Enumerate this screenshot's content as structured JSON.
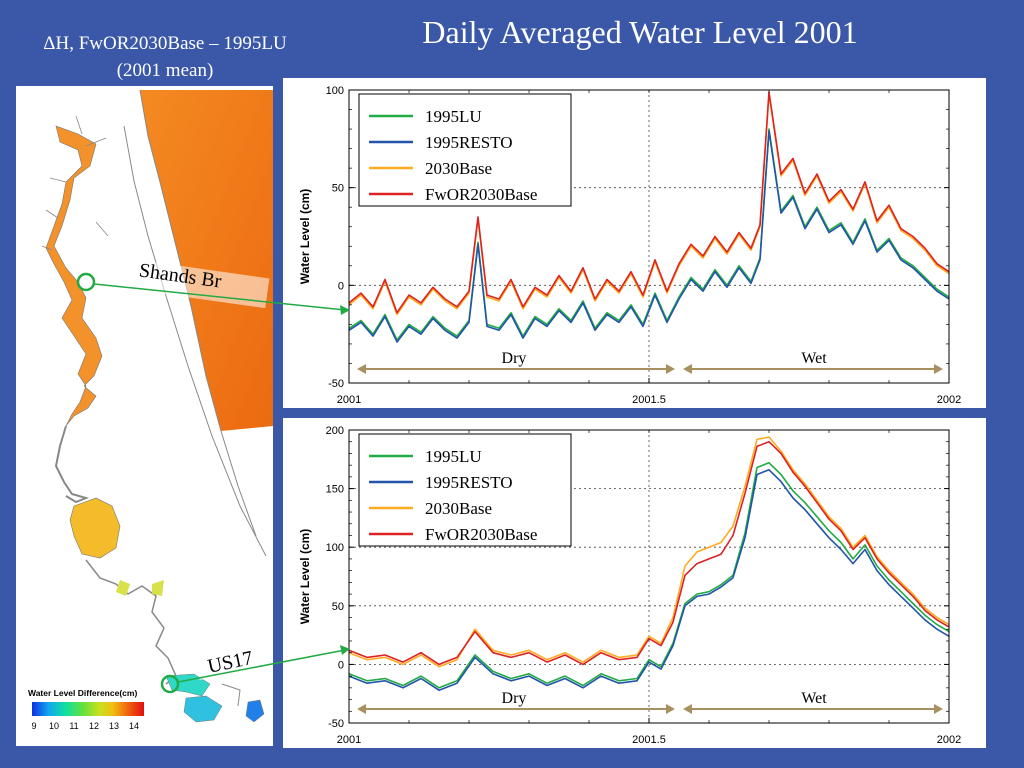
{
  "slide": {
    "title": "Daily Averaged Water Level 2001",
    "map_title_line1": "ΔH, FwOR2030Base – 1995LU",
    "map_title_line2": "(2001 mean)"
  },
  "map": {
    "labels": {
      "shands": "Shands Br",
      "us17": "US17"
    },
    "colorbar": {
      "title": "Water Level Difference(cm)",
      "ticks": [
        "9",
        "10",
        "11",
        "12",
        "13",
        "14"
      ],
      "colors": [
        "#1030e0",
        "#10a8f0",
        "#10e0a0",
        "#60e040",
        "#c8e020",
        "#f0c010",
        "#f06010",
        "#e01010"
      ]
    },
    "region_colors": {
      "ocean": "#f27a18",
      "river_upper": "#f3922a",
      "lake": "#f4bb2a",
      "mid": "#d8e04a",
      "lower": "#30d8c8",
      "lower_blue": "#2080e8"
    }
  },
  "colors": {
    "1995LU": "#22aa44",
    "1995RESTO": "#2255aa",
    "2030Base": "#ffaa22",
    "FwOR2030Base": "#dd2222",
    "season_arrow": "#a89060",
    "connector": "#22aa44"
  },
  "chart_data": [
    {
      "type": "line",
      "ylabel": "Water Level (cm)",
      "xlabel": "",
      "xlim": [
        2001,
        2002
      ],
      "ylim": [
        -50,
        100
      ],
      "xticks": [
        "2001",
        "2001.5",
        "2002"
      ],
      "yticks": [
        "100",
        "50",
        "0",
        "-50"
      ],
      "ytick_values": [
        100,
        50,
        0,
        -50
      ],
      "grid": "dotted",
      "legend_position": "top-left",
      "season_labels": [
        "Dry",
        "Wet"
      ],
      "season_split": 2001.55,
      "series": [
        {
          "name": "1995LU",
          "x": [
            2001.0,
            2001.02,
            2001.04,
            2001.06,
            2001.08,
            2001.1,
            2001.12,
            2001.14,
            2001.16,
            2001.18,
            2001.2,
            2001.215,
            2001.23,
            2001.25,
            2001.27,
            2001.29,
            2001.31,
            2001.33,
            2001.35,
            2001.37,
            2001.39,
            2001.41,
            2001.43,
            2001.45,
            2001.47,
            2001.49,
            2001.51,
            2001.53,
            2001.55,
            2001.57,
            2001.59,
            2001.61,
            2001.63,
            2001.65,
            2001.67,
            2001.685,
            2001.7,
            2001.72,
            2001.74,
            2001.76,
            2001.78,
            2001.8,
            2001.82,
            2001.84,
            2001.86,
            2001.88,
            2001.9,
            2001.92,
            2001.94,
            2001.96,
            2001.98,
            2002.0
          ],
          "values": [
            -22,
            -18,
            -25,
            -15,
            -28,
            -20,
            -24,
            -16,
            -22,
            -26,
            -18,
            22,
            -20,
            -22,
            -14,
            -26,
            -16,
            -20,
            -12,
            -18,
            -8,
            -22,
            -14,
            -18,
            -10,
            -20,
            -4,
            -18,
            -6,
            4,
            -2,
            8,
            0,
            10,
            2,
            14,
            80,
            38,
            46,
            30,
            40,
            28,
            32,
            22,
            34,
            18,
            24,
            14,
            10,
            4,
            -2,
            -6
          ]
        },
        {
          "name": "1995RESTO",
          "x": [
            2001.0,
            2001.02,
            2001.04,
            2001.06,
            2001.08,
            2001.1,
            2001.12,
            2001.14,
            2001.16,
            2001.18,
            2001.2,
            2001.215,
            2001.23,
            2001.25,
            2001.27,
            2001.29,
            2001.31,
            2001.33,
            2001.35,
            2001.37,
            2001.39,
            2001.41,
            2001.43,
            2001.45,
            2001.47,
            2001.49,
            2001.51,
            2001.53,
            2001.55,
            2001.57,
            2001.59,
            2001.61,
            2001.63,
            2001.65,
            2001.67,
            2001.685,
            2001.7,
            2001.72,
            2001.74,
            2001.76,
            2001.78,
            2001.8,
            2001.82,
            2001.84,
            2001.86,
            2001.88,
            2001.9,
            2001.92,
            2001.94,
            2001.96,
            2001.98,
            2002.0
          ],
          "values": [
            -23,
            -19,
            -26,
            -16,
            -29,
            -21,
            -25,
            -17,
            -23,
            -27,
            -19,
            21,
            -21,
            -23,
            -15,
            -27,
            -17,
            -21,
            -13,
            -19,
            -9,
            -23,
            -15,
            -19,
            -11,
            -21,
            -5,
            -19,
            -7,
            3,
            -3,
            7,
            -1,
            9,
            1,
            13,
            79,
            37,
            45,
            29,
            39,
            27,
            31,
            21,
            33,
            17,
            23,
            13,
            9,
            3,
            -3,
            -7
          ]
        },
        {
          "name": "2030Base",
          "x": [
            2001.0,
            2001.02,
            2001.04,
            2001.06,
            2001.08,
            2001.1,
            2001.12,
            2001.14,
            2001.16,
            2001.18,
            2001.2,
            2001.215,
            2001.23,
            2001.25,
            2001.27,
            2001.29,
            2001.31,
            2001.33,
            2001.35,
            2001.37,
            2001.39,
            2001.41,
            2001.43,
            2001.45,
            2001.47,
            2001.49,
            2001.51,
            2001.53,
            2001.55,
            2001.57,
            2001.59,
            2001.61,
            2001.63,
            2001.65,
            2001.67,
            2001.685,
            2001.7,
            2001.72,
            2001.74,
            2001.76,
            2001.78,
            2001.8,
            2001.82,
            2001.84,
            2001.86,
            2001.88,
            2001.9,
            2001.92,
            2001.94,
            2001.96,
            2001.98,
            2002.0
          ],
          "values": [
            -10,
            -5,
            -12,
            2,
            -15,
            -6,
            -10,
            -2,
            -8,
            -12,
            -4,
            34,
            -6,
            -8,
            2,
            -12,
            -2,
            -6,
            4,
            -4,
            8,
            -8,
            2,
            -4,
            6,
            -6,
            12,
            -4,
            10,
            20,
            14,
            24,
            16,
            26,
            18,
            30,
            98,
            56,
            64,
            46,
            56,
            42,
            48,
            38,
            52,
            32,
            40,
            28,
            24,
            18,
            10,
            6
          ]
        },
        {
          "name": "FwOR2030Base",
          "x": [
            2001.0,
            2001.02,
            2001.04,
            2001.06,
            2001.08,
            2001.1,
            2001.12,
            2001.14,
            2001.16,
            2001.18,
            2001.2,
            2001.215,
            2001.23,
            2001.25,
            2001.27,
            2001.29,
            2001.31,
            2001.33,
            2001.35,
            2001.37,
            2001.39,
            2001.41,
            2001.43,
            2001.45,
            2001.47,
            2001.49,
            2001.51,
            2001.53,
            2001.55,
            2001.57,
            2001.59,
            2001.61,
            2001.63,
            2001.65,
            2001.67,
            2001.685,
            2001.7,
            2001.72,
            2001.74,
            2001.76,
            2001.78,
            2001.8,
            2001.82,
            2001.84,
            2001.86,
            2001.88,
            2001.9,
            2001.92,
            2001.94,
            2001.96,
            2001.98,
            2002.0
          ],
          "values": [
            -9,
            -4,
            -11,
            3,
            -14,
            -5,
            -9,
            -1,
            -7,
            -11,
            -3,
            35,
            -5,
            -7,
            3,
            -11,
            -1,
            -5,
            5,
            -3,
            9,
            -7,
            3,
            -3,
            7,
            -5,
            13,
            -3,
            11,
            21,
            15,
            25,
            17,
            27,
            19,
            31,
            99,
            57,
            65,
            47,
            57,
            43,
            49,
            39,
            53,
            33,
            41,
            29,
            25,
            19,
            11,
            7
          ]
        }
      ]
    },
    {
      "type": "line",
      "ylabel": "Water Level (cm)",
      "xlabel": "",
      "xlim": [
        2001,
        2002
      ],
      "ylim": [
        -50,
        200
      ],
      "xticks": [
        "2001",
        "2001.5",
        "2002"
      ],
      "yticks": [
        "200",
        "150",
        "100",
        "50",
        "0",
        "-50"
      ],
      "ytick_values": [
        200,
        150,
        100,
        50,
        0,
        -50
      ],
      "grid": "dotted",
      "legend_position": "top-left",
      "season_labels": [
        "Dry",
        "Wet"
      ],
      "season_split": 2001.55,
      "series": [
        {
          "name": "1995LU",
          "x": [
            2001.0,
            2001.03,
            2001.06,
            2001.09,
            2001.12,
            2001.15,
            2001.18,
            2001.21,
            2001.24,
            2001.27,
            2001.3,
            2001.33,
            2001.36,
            2001.39,
            2001.42,
            2001.45,
            2001.48,
            2001.5,
            2001.52,
            2001.54,
            2001.56,
            2001.58,
            2001.6,
            2001.62,
            2001.64,
            2001.66,
            2001.68,
            2001.7,
            2001.72,
            2001.74,
            2001.76,
            2001.78,
            2001.8,
            2001.82,
            2001.84,
            2001.86,
            2001.88,
            2001.9,
            2001.92,
            2001.94,
            2001.96,
            2001.98,
            2002.0
          ],
          "values": [
            -8,
            -14,
            -12,
            -18,
            -10,
            -20,
            -14,
            8,
            -6,
            -12,
            -8,
            -16,
            -10,
            -18,
            -8,
            -14,
            -12,
            4,
            -2,
            18,
            52,
            60,
            62,
            68,
            76,
            112,
            168,
            172,
            162,
            148,
            138,
            126,
            114,
            104,
            90,
            102,
            84,
            72,
            62,
            52,
            42,
            34,
            28
          ]
        },
        {
          "name": "1995RESTO",
          "x": [
            2001.0,
            2001.03,
            2001.06,
            2001.09,
            2001.12,
            2001.15,
            2001.18,
            2001.21,
            2001.24,
            2001.27,
            2001.3,
            2001.33,
            2001.36,
            2001.39,
            2001.42,
            2001.45,
            2001.48,
            2001.5,
            2001.52,
            2001.54,
            2001.56,
            2001.58,
            2001.6,
            2001.62,
            2001.64,
            2001.66,
            2001.68,
            2001.7,
            2001.72,
            2001.74,
            2001.76,
            2001.78,
            2001.8,
            2001.82,
            2001.84,
            2001.86,
            2001.88,
            2001.9,
            2001.92,
            2001.94,
            2001.96,
            2001.98,
            2002.0
          ],
          "values": [
            -10,
            -16,
            -14,
            -20,
            -12,
            -22,
            -16,
            6,
            -8,
            -14,
            -10,
            -18,
            -12,
            -20,
            -10,
            -16,
            -14,
            2,
            -4,
            16,
            50,
            58,
            60,
            66,
            74,
            108,
            162,
            166,
            156,
            142,
            132,
            120,
            108,
            98,
            86,
            98,
            80,
            68,
            58,
            48,
            38,
            30,
            24
          ]
        },
        {
          "name": "2030Base",
          "x": [
            2001.0,
            2001.03,
            2001.06,
            2001.09,
            2001.12,
            2001.15,
            2001.18,
            2001.21,
            2001.24,
            2001.27,
            2001.3,
            2001.33,
            2001.36,
            2001.39,
            2001.42,
            2001.45,
            2001.48,
            2001.5,
            2001.52,
            2001.54,
            2001.56,
            2001.58,
            2001.6,
            2001.62,
            2001.64,
            2001.66,
            2001.68,
            2001.7,
            2001.72,
            2001.74,
            2001.76,
            2001.78,
            2001.8,
            2001.82,
            2001.84,
            2001.86,
            2001.88,
            2001.9,
            2001.92,
            2001.94,
            2001.96,
            2001.98,
            2002.0
          ],
          "values": [
            10,
            4,
            6,
            0,
            8,
            -2,
            4,
            30,
            12,
            8,
            12,
            4,
            10,
            2,
            12,
            6,
            8,
            24,
            18,
            40,
            84,
            96,
            100,
            104,
            118,
            152,
            192,
            194,
            182,
            166,
            154,
            140,
            126,
            116,
            100,
            110,
            92,
            80,
            70,
            60,
            48,
            40,
            34
          ]
        },
        {
          "name": "FwOR2030Base",
          "x": [
            2001.0,
            2001.03,
            2001.06,
            2001.09,
            2001.12,
            2001.15,
            2001.18,
            2001.21,
            2001.24,
            2001.27,
            2001.3,
            2001.33,
            2001.36,
            2001.39,
            2001.42,
            2001.45,
            2001.48,
            2001.5,
            2001.52,
            2001.54,
            2001.56,
            2001.58,
            2001.6,
            2001.62,
            2001.64,
            2001.66,
            2001.68,
            2001.7,
            2001.72,
            2001.74,
            2001.76,
            2001.78,
            2001.8,
            2001.82,
            2001.84,
            2001.86,
            2001.88,
            2001.9,
            2001.92,
            2001.94,
            2001.96,
            2001.98,
            2002.0
          ],
          "values": [
            12,
            6,
            8,
            2,
            10,
            0,
            6,
            28,
            10,
            6,
            10,
            2,
            8,
            0,
            10,
            4,
            6,
            22,
            16,
            36,
            76,
            86,
            90,
            94,
            110,
            146,
            186,
            190,
            180,
            164,
            152,
            138,
            124,
            114,
            98,
            108,
            90,
            78,
            68,
            58,
            46,
            38,
            32
          ]
        }
      ]
    }
  ]
}
